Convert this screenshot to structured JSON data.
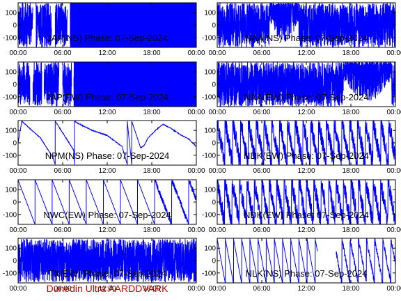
{
  "footer": {
    "text": "Dunedin Ultra AARDDVARK",
    "color": "#cc0000"
  },
  "colors": {
    "trace": "#0000ff",
    "frame": "#000000",
    "background": "#ffffff"
  },
  "chart_data": [
    {
      "type": "line",
      "station": "JAP",
      "component": "NS",
      "title": "JAP(NS) Phase: 07-Sep-2024",
      "x_ticks": [
        "00:00",
        "06:00",
        "12:00",
        "18:00",
        "00:00"
      ],
      "y_ticks": [
        "-100",
        "0",
        "100"
      ],
      "xlim_hours": [
        0,
        24
      ],
      "ylim": [
        -180,
        180
      ],
      "pattern": "gap_then_saturated",
      "gaps_hours": [
        [
          2.0,
          2.4
        ],
        [
          4.5,
          5.0
        ],
        [
          6.6,
          7.0
        ]
      ],
      "saturated_from_hour": 7.0
    },
    {
      "type": "line",
      "station": "NAA",
      "component": "NS",
      "title": "NAA(NS) Phase: 07-Sep-2024",
      "x_ticks": [
        "00:00",
        "06:00",
        "12:00",
        "18:00",
        "00:00"
      ],
      "y_ticks": [
        "-100",
        "0",
        "100"
      ],
      "xlim_hours": [
        0,
        24
      ],
      "ylim": [
        -180,
        180
      ],
      "pattern": "dense_with_dip",
      "dip_hours": [
        7.0,
        11.0
      ]
    },
    {
      "type": "line",
      "station": "JAP",
      "component": "EW",
      "title": "JAP(EW) Phase: 07-Sep-2024",
      "x_ticks": [
        "00:00",
        "06:00",
        "12:00",
        "18:00",
        "00:00"
      ],
      "y_ticks": [
        "-100",
        "0",
        "100"
      ],
      "xlim_hours": [
        0,
        24
      ],
      "ylim": [
        -180,
        180
      ],
      "pattern": "gap_then_saturated",
      "gaps_hours": [
        [
          1.6,
          2.0
        ],
        [
          3.2,
          3.5
        ],
        [
          5.5,
          6.0
        ],
        [
          7.2,
          7.5
        ]
      ],
      "saturated_from_hour": 7.5
    },
    {
      "type": "line",
      "station": "NAA",
      "component": "EW",
      "title": "NAA(EW) Phase: 07-Sep-2024",
      "x_ticks": [
        "00:00",
        "06:00",
        "12:00",
        "18:00",
        "00:00"
      ],
      "y_ticks": [
        "-100",
        "0",
        "100"
      ],
      "xlim_hours": [
        0,
        24
      ],
      "ylim": [
        -180,
        180
      ],
      "pattern": "dense_with_dip",
      "dip_hours": [
        17.0,
        23.5
      ]
    },
    {
      "type": "line",
      "station": "NPM",
      "component": "NS",
      "title": "NPM(NS) Phase: 07-Sep-2024",
      "x_ticks": [
        "00:00",
        "06:00",
        "12:00",
        "18:00",
        "00:00"
      ],
      "y_ticks": [
        "-100",
        "0",
        "100"
      ],
      "xlim_hours": [
        0,
        24
      ],
      "ylim": [
        -180,
        180
      ],
      "pattern": "drift",
      "points": [
        [
          0.0,
          0
        ],
        [
          0.5,
          175
        ],
        [
          1.5,
          120
        ],
        [
          3.0,
          40
        ],
        [
          4.7,
          -120
        ],
        [
          5.0,
          -175
        ],
        [
          5.0,
          175
        ],
        [
          7.5,
          -60
        ],
        [
          7.6,
          -175
        ],
        [
          7.6,
          175
        ],
        [
          8.0,
          160
        ],
        [
          10.0,
          100
        ],
        [
          12.0,
          60
        ],
        [
          14.0,
          -30
        ],
        [
          14.7,
          -175
        ],
        [
          14.7,
          175
        ],
        [
          15.3,
          -175
        ],
        [
          15.3,
          175
        ],
        [
          16.5,
          -40
        ],
        [
          17.0,
          -20
        ],
        [
          17.5,
          40
        ],
        [
          18.5,
          100
        ],
        [
          19.5,
          150
        ],
        [
          20.5,
          120
        ],
        [
          22.0,
          60
        ],
        [
          23.0,
          30
        ],
        [
          24.0,
          -30
        ]
      ]
    },
    {
      "type": "line",
      "station": "NDK",
      "component": "EW",
      "title": "NDK(EW) Phase: 07-Sep-2024",
      "x_ticks": [
        "00:00",
        "06:00",
        "12:00",
        "18:00",
        "00:00"
      ],
      "y_ticks": [
        "-100",
        "0",
        "100"
      ],
      "xlim_hours": [
        0,
        24
      ],
      "ylim": [
        -180,
        180
      ],
      "pattern": "wrap_noisy",
      "wrap_period_hours": 1.05
    },
    {
      "type": "line",
      "station": "NWC",
      "component": "EW",
      "title": "NWC(EW) Phase: 07-Sep-2024",
      "x_ticks": [
        "00:00",
        "06:00",
        "12:00",
        "18:00",
        "00:00"
      ],
      "y_ticks": [
        "-100",
        "0",
        "100"
      ],
      "xlim_hours": [
        0,
        24
      ],
      "ylim": [
        -180,
        180
      ],
      "pattern": "wrap_clean",
      "wrap_period_hours": 2.3,
      "noisy_hours": [
        18.5,
        24.0
      ]
    },
    {
      "type": "line",
      "station": "NDK",
      "component": "EW",
      "title": "NDK(EW) Phase: 07-Sep-2024",
      "x_ticks": [
        "00:00",
        "06:00",
        "12:00",
        "18:00",
        "00:00"
      ],
      "y_ticks": [
        "-100",
        "0",
        "100"
      ],
      "xlim_hours": [
        0,
        24
      ],
      "ylim": [
        -180,
        180
      ],
      "pattern": "wrap_noisy",
      "wrap_period_hours": 1.0
    },
    {
      "type": "line",
      "station": "TX",
      "component": "EW",
      "title": "TX(EW) Phase: 07-Sep-2024",
      "x_ticks": [
        "00:00",
        "06:00",
        "12:00",
        "18:00",
        "00:00"
      ],
      "y_ticks": [
        "-100",
        "0",
        "100"
      ],
      "xlim_hours": [
        0,
        24
      ],
      "ylim": [
        -180,
        180
      ],
      "pattern": "noise"
    },
    {
      "type": "line",
      "station": "NLK",
      "component": "NS",
      "title": "NLK(NS) Phase: 07-Sep-2024",
      "x_ticks": [
        "00:00",
        "06:00",
        "12:00",
        "18:00",
        "00:00"
      ],
      "y_ticks": [
        "-100",
        "0",
        "100"
      ],
      "xlim_hours": [
        0,
        24
      ],
      "ylim": [
        -180,
        180
      ],
      "pattern": "wrap_clean",
      "wrap_period_hours": 1.1,
      "gap_hours": [
        13.5,
        16.0
      ],
      "noisy_hours": [
        16.0,
        24.0
      ]
    }
  ]
}
